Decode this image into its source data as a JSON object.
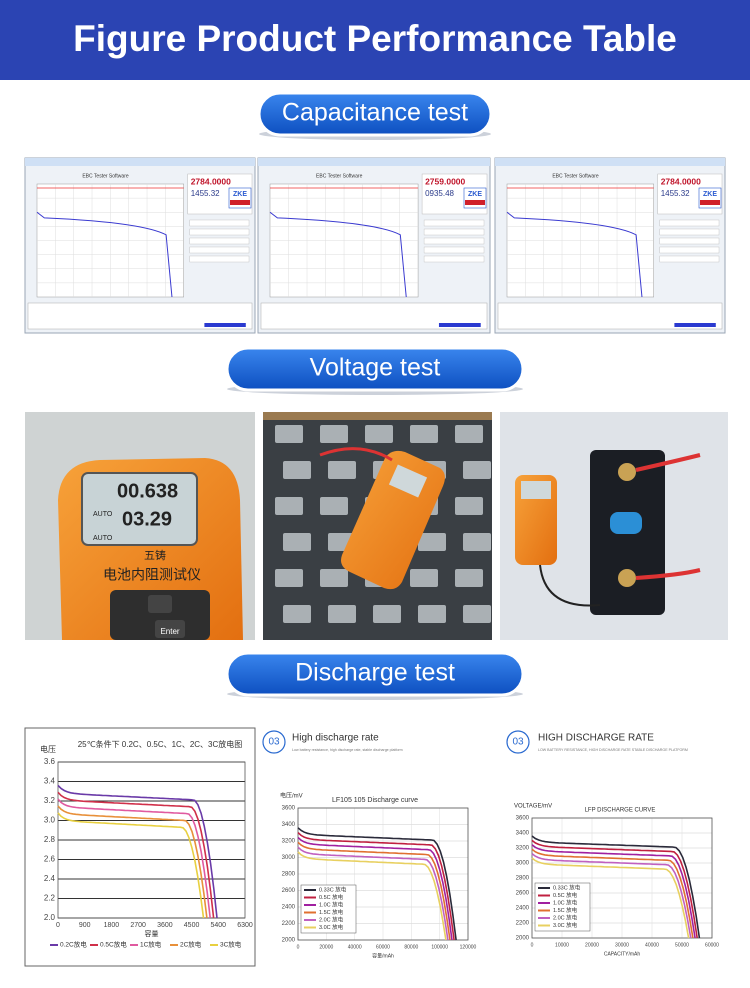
{
  "header": {
    "title": "Figure Product Performance Table"
  },
  "sections": [
    {
      "label": "Capacitance test"
    },
    {
      "label": "Voltage test"
    },
    {
      "label": "Discharge test"
    }
  ],
  "capacitance_screens": [
    {
      "software": "EBC Tester Software",
      "reading_1": "2784.0000",
      "reading_2": "1455.32",
      "brand": "ZKE"
    },
    {
      "software": "EBC Tester Software",
      "reading_1": "2759.0000",
      "reading_2": "0935.48",
      "brand": "ZKE"
    },
    {
      "software": "EBC Tester Software",
      "reading_1": "2784.0000",
      "reading_2": "1455.32",
      "brand": "ZKE"
    }
  ],
  "voltage_photo": {
    "resistance": "00.638",
    "voltage": "03.29",
    "mode": "AUTO",
    "brand": "五铸",
    "device": "电池内阻测试仪",
    "key": "Enter"
  },
  "discharge_charts": [
    {
      "title": "25℃条件下 0.2C、0.5C、1C、2C、3C放电图",
      "y_label": "电压",
      "x_label": "容量",
      "yticks": [
        "3.6",
        "3.4",
        "3.2",
        "3.0",
        "2.8",
        "2.6",
        "2.4",
        "2.2",
        "2.0"
      ],
      "xticks": [
        "0",
        "900",
        "1800",
        "2700",
        "3600",
        "4500",
        "5400",
        "6300"
      ],
      "legend": [
        "0.2C放电",
        "0.5C放电",
        "1C放电",
        "2C放电",
        "3C放电"
      ]
    },
    {
      "badge": "03",
      "heading": "High discharge rate",
      "subheading": "Low battery resistance, high discharge rate, stable discharge platform",
      "title": "LF105 105 Discharge curve",
      "y_label": "电压/mV",
      "x_label": "容量/mAh",
      "yticks": [
        "3600",
        "3400",
        "3200",
        "3000",
        "2800",
        "2600",
        "2400",
        "2200",
        "2000"
      ],
      "xticks": [
        "0",
        "20000",
        "40000",
        "60000",
        "80000",
        "100000",
        "120000"
      ],
      "legend": [
        "0.33C 放电",
        "0.5C 放电",
        "1.0C 放电",
        "1.5C 放电",
        "2.0C 放电",
        "3.0C 放电"
      ]
    },
    {
      "badge": "03",
      "heading": "HIGH DISCHARGE RATE",
      "subheading": "LOW BATTERY RESISTANCE, HIGH DISCHARGE RATE STABLE DISCHARGE PLATFORM",
      "title": "LFP DISCHARGE CURVE",
      "y_label": "VOLTAGE/mV",
      "x_label": "CAPACITY/mAh",
      "yticks": [
        "3600",
        "3400",
        "3200",
        "3000",
        "2800",
        "2600",
        "2400",
        "2200",
        "2000"
      ],
      "xticks": [
        "0",
        "10000",
        "20000",
        "30000",
        "40000",
        "50000",
        "60000"
      ],
      "legend": [
        "0.33C 放电",
        "0.5C 放电",
        "1.0C 放电",
        "1.5C 放电",
        "2.0C 放电",
        "3.0C 放电"
      ]
    }
  ]
}
